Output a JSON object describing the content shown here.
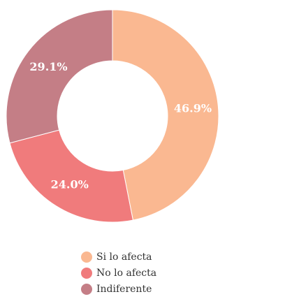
{
  "chart_data": {
    "type": "pie",
    "donut": true,
    "title": "",
    "categories": [
      "Si lo afecta",
      "No lo afecta",
      "Indiferente"
    ],
    "values": [
      46.9,
      24.0,
      29.1
    ],
    "labels": [
      "46.9%",
      "24.0%",
      "29.1%"
    ],
    "colors": [
      "#fab891",
      "#f07b7c",
      "#c47e86"
    ],
    "legend": {
      "position": "bottom",
      "items": [
        {
          "label": "Si lo afecta",
          "color": "#fab891"
        },
        {
          "label": "No lo afecta",
          "color": "#f07b7c"
        },
        {
          "label": "Indiferente",
          "color": "#c47e86"
        }
      ]
    }
  }
}
